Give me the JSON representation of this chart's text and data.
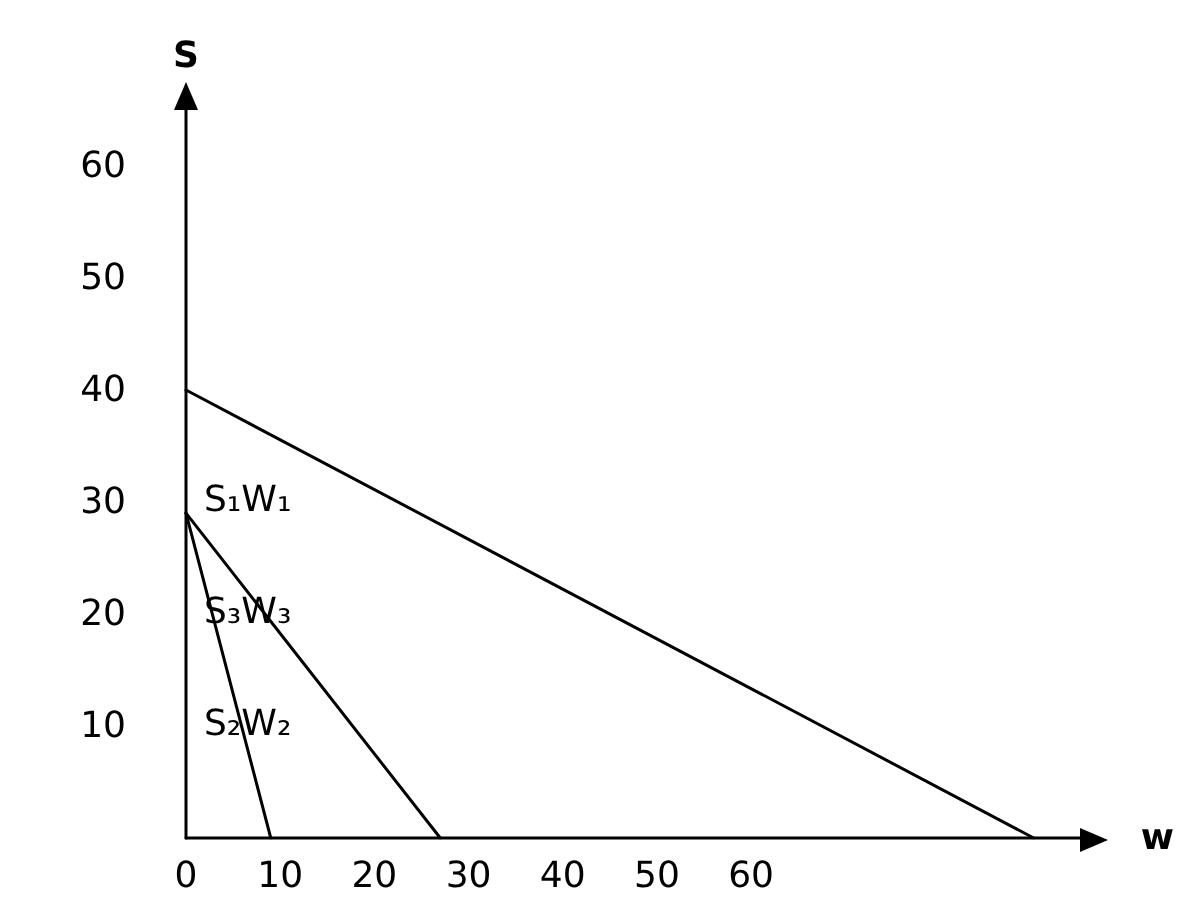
{
  "chart_data": {
    "type": "line",
    "xlabel": "w",
    "ylabel": "S",
    "xlim": [
      0,
      95
    ],
    "xticks": [
      0,
      10,
      20,
      30,
      40,
      50,
      60
    ],
    "ylim": [
      0,
      65
    ],
    "yticks": [
      10,
      20,
      30,
      40,
      50,
      60
    ],
    "grid": false,
    "marker": "none",
    "line_style": "solid",
    "series": [
      {
        "color": "#000000",
        "x": [
          0,
          90
        ],
        "values": [
          40,
          0
        ]
      },
      {
        "color": "#000000",
        "x": [
          0,
          9
        ],
        "values": [
          29,
          0
        ]
      },
      {
        "color": "#000000",
        "x": [
          0,
          27
        ],
        "values": [
          29,
          0
        ]
      }
    ],
    "annotations": [
      "S₁W₁",
      "S₃W₃",
      "S₂W₂"
    ]
  }
}
